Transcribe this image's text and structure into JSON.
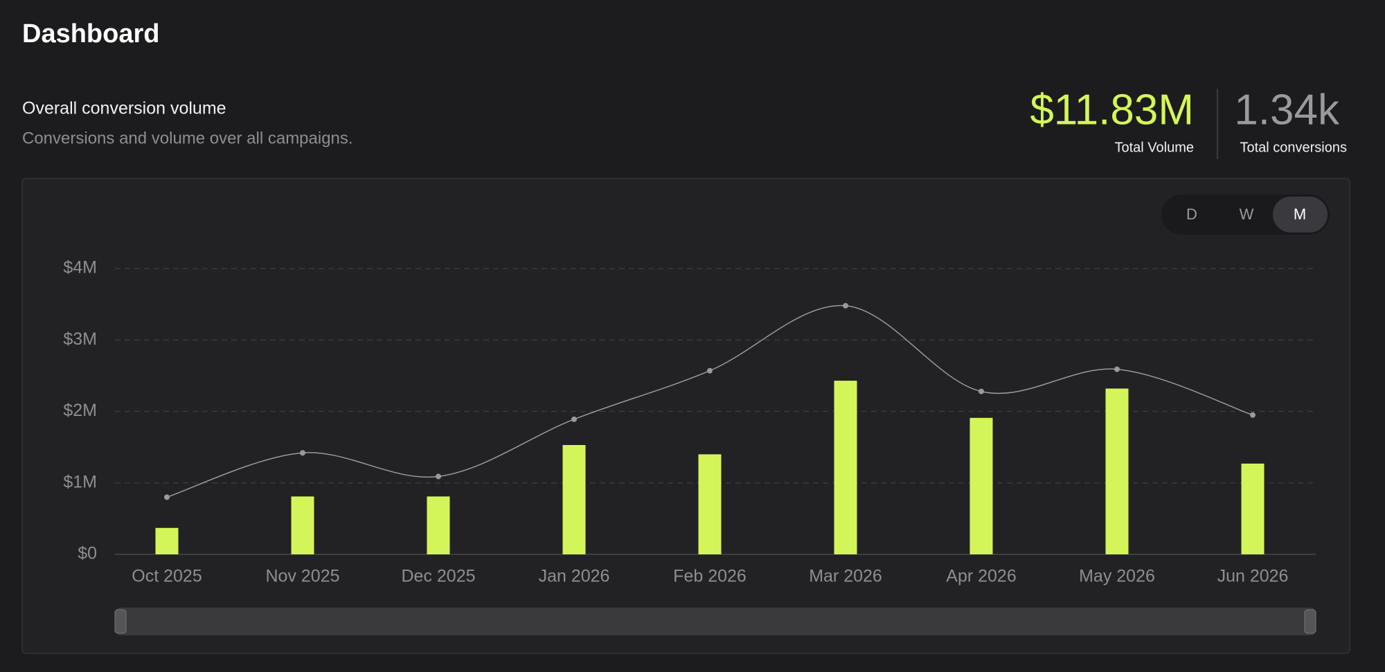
{
  "header": {
    "title": "Dashboard",
    "section_title": "Overall conversion volume",
    "section_subtitle": "Conversions and volume over all campaigns."
  },
  "kpis": [
    {
      "value": "$11.83M",
      "label": "Total Volume"
    },
    {
      "value": "1.34k",
      "label": "Total conversions"
    }
  ],
  "toggle": {
    "options": [
      "D",
      "W",
      "M"
    ],
    "selected": "M"
  },
  "chart_data": {
    "type": "bar",
    "categories": [
      "Oct 2025",
      "Nov 2025",
      "Dec 2025",
      "Jan 2026",
      "Feb 2026",
      "Mar 2026",
      "Apr 2026",
      "May 2026",
      "Jun 2026"
    ],
    "series": [
      {
        "type": "bar",
        "color": "#d4f55a",
        "values": [
          370000,
          810000,
          810000,
          1530000,
          1400000,
          2430000,
          1910000,
          2320000,
          1270000
        ]
      },
      {
        "type": "line",
        "color": "#9a9a9e",
        "values": [
          800000,
          1420000,
          1090000,
          1890000,
          2570000,
          3480000,
          2280000,
          2590000,
          1950000
        ]
      }
    ],
    "ylim": [
      0,
      4000000
    ],
    "yticks": [
      {
        "value": 0,
        "label": "$0"
      },
      {
        "value": 1000000,
        "label": "$1M"
      },
      {
        "value": 2000000,
        "label": "$2M"
      },
      {
        "value": 3000000,
        "label": "$3M"
      },
      {
        "value": 4000000,
        "label": "$4M"
      }
    ],
    "grid": true
  }
}
